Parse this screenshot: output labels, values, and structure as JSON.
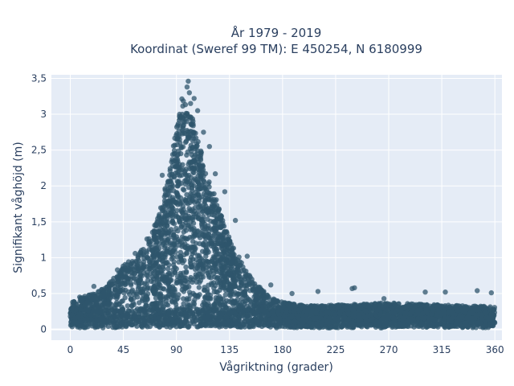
{
  "chart_data": {
    "type": "scatter",
    "title_line1": "År 1979 - 2019",
    "title_line2": "Koordinat (Sweref 99 TM): E 450254, N 6180999",
    "xlabel": "Vågriktning (grader)",
    "ylabel": "Signifikant våghöjd (m)",
    "xlim": [
      -16,
      366
    ],
    "ylim": [
      -0.15,
      3.55
    ],
    "xticks": [
      0,
      45,
      90,
      135,
      180,
      225,
      270,
      315,
      360
    ],
    "xtick_labels": [
      "0",
      "45",
      "90",
      "135",
      "180",
      "225",
      "270",
      "315",
      "360"
    ],
    "yticks": [
      0,
      0.5,
      1,
      1.5,
      2,
      2.5,
      3,
      3.5
    ],
    "ytick_labels": [
      "0",
      "0,5",
      "1",
      "1,5",
      "2",
      "2,5",
      "3",
      "3,5"
    ],
    "grid": true,
    "marker_color": "#2f566c",
    "background_color": "#e5ecf6",
    "envelope": {
      "x": [
        0,
        10,
        20,
        30,
        40,
        45,
        55,
        65,
        75,
        85,
        90,
        95,
        100,
        105,
        110,
        115,
        120,
        125,
        130,
        135,
        140,
        150,
        160,
        170,
        180,
        190,
        200,
        225,
        270,
        315,
        360
      ],
      "y_max": [
        0.38,
        0.45,
        0.5,
        0.6,
        0.78,
        0.9,
        1.0,
        1.2,
        1.6,
        2.3,
        2.85,
        3.25,
        3.05,
        2.9,
        2.6,
        2.2,
        2.0,
        1.75,
        1.5,
        1.3,
        1.1,
        0.8,
        0.6,
        0.45,
        0.38,
        0.35,
        0.33,
        0.34,
        0.37,
        0.34,
        0.32
      ]
    },
    "outliers": [
      {
        "x": 100,
        "y": 3.46
      },
      {
        "x": 99,
        "y": 3.38
      },
      {
        "x": 101,
        "y": 3.3
      },
      {
        "x": 105,
        "y": 3.22
      },
      {
        "x": 102,
        "y": 3.15
      },
      {
        "x": 108,
        "y": 3.05
      },
      {
        "x": 95,
        "y": 3.0
      },
      {
        "x": 113,
        "y": 2.75
      },
      {
        "x": 118,
        "y": 2.55
      },
      {
        "x": 123,
        "y": 2.17
      },
      {
        "x": 131,
        "y": 1.92
      },
      {
        "x": 140,
        "y": 1.52
      },
      {
        "x": 150,
        "y": 1.02
      },
      {
        "x": 170,
        "y": 0.62
      },
      {
        "x": 188,
        "y": 0.5
      },
      {
        "x": 210,
        "y": 0.53
      },
      {
        "x": 241,
        "y": 0.58
      },
      {
        "x": 239,
        "y": 0.57
      },
      {
        "x": 266,
        "y": 0.43
      },
      {
        "x": 301,
        "y": 0.52
      },
      {
        "x": 318,
        "y": 0.52
      },
      {
        "x": 345,
        "y": 0.54
      },
      {
        "x": 357,
        "y": 0.51
      },
      {
        "x": 78,
        "y": 2.15
      },
      {
        "x": 65,
        "y": 1.26
      },
      {
        "x": 55,
        "y": 1.06
      },
      {
        "x": 40,
        "y": 0.83
      },
      {
        "x": 20,
        "y": 0.6
      },
      {
        "x": 8,
        "y": 0.45
      },
      {
        "x": 2,
        "y": 0.38
      }
    ]
  }
}
